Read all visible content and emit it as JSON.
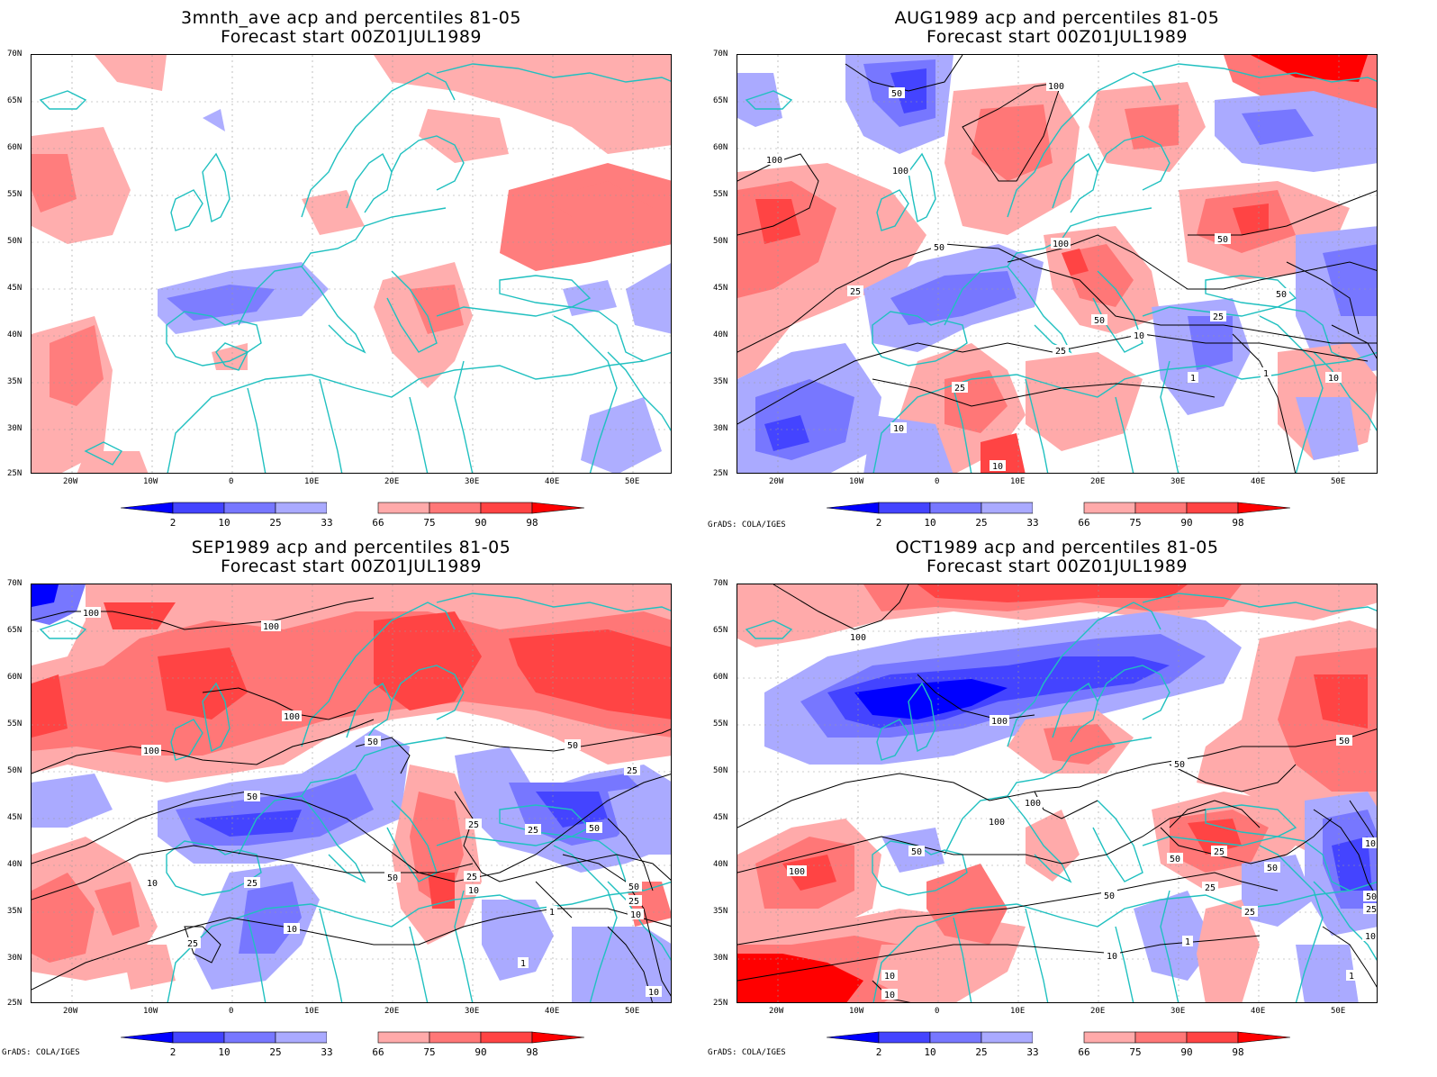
{
  "panels": [
    {
      "id": "p1",
      "title_line1": "3mnth_ave acp and percentiles 81-05",
      "title_line2": "Forecast start 00Z01JUL1989",
      "credit": ""
    },
    {
      "id": "p2",
      "title_line1": "AUG1989 acp and percentiles 81-05",
      "title_line2": "Forecast start 00Z01JUL1989",
      "credit": "GrADS: COLA/IGES"
    },
    {
      "id": "p3",
      "title_line1": "SEP1989 acp and percentiles 81-05",
      "title_line2": "Forecast start 00Z01JUL1989",
      "credit": "GrADS: COLA/IGES"
    },
    {
      "id": "p4",
      "title_line1": "OCT1989 acp and percentiles 81-05",
      "title_line2": "Forecast start 00Z01JUL1989",
      "credit": "GrADS: COLA/IGES"
    }
  ],
  "lat_labels": [
    "70N",
    "65N",
    "60N",
    "55N",
    "50N",
    "45N",
    "40N",
    "35N",
    "30N",
    "25N"
  ],
  "lon_labels": [
    "20W",
    "10W",
    "0",
    "10E",
    "20E",
    "30E",
    "40E",
    "50E"
  ],
  "colorbar": {
    "ticks": [
      "2",
      "10",
      "25",
      "33",
      "66",
      "75",
      "90",
      "98"
    ],
    "colors": [
      "#0000ff",
      "#4444ff",
      "#7777ff",
      "#aaaaff",
      "#ffffff",
      "#ffaaaa",
      "#ff7777",
      "#ff4444",
      "#ff0000"
    ]
  },
  "contour_labels": {
    "p2": [
      "50",
      "100",
      "100",
      "100",
      "50",
      "100",
      "50",
      "25",
      "50",
      "25",
      "25",
      "10",
      "10",
      "10",
      "25",
      "1",
      "50",
      "1",
      "10"
    ],
    "p3": [
      "100",
      "100",
      "100",
      "100",
      "50",
      "50",
      "50",
      "25",
      "25",
      "50",
      "25",
      "50",
      "10",
      "25",
      "25",
      "10",
      "50",
      "10",
      "25",
      "25",
      "10",
      "1",
      "1",
      "10"
    ],
    "p4": [
      "100",
      "100",
      "100",
      "50",
      "50",
      "100",
      "50",
      "100",
      "25",
      "50",
      "50",
      "50",
      "25",
      "25",
      "10",
      "1",
      "10",
      "10",
      "50",
      "25",
      "10",
      "1",
      "10"
    ]
  },
  "colors": {
    "coast": "#20c0c0",
    "grid": "#999999",
    "contour": "#000000"
  }
}
